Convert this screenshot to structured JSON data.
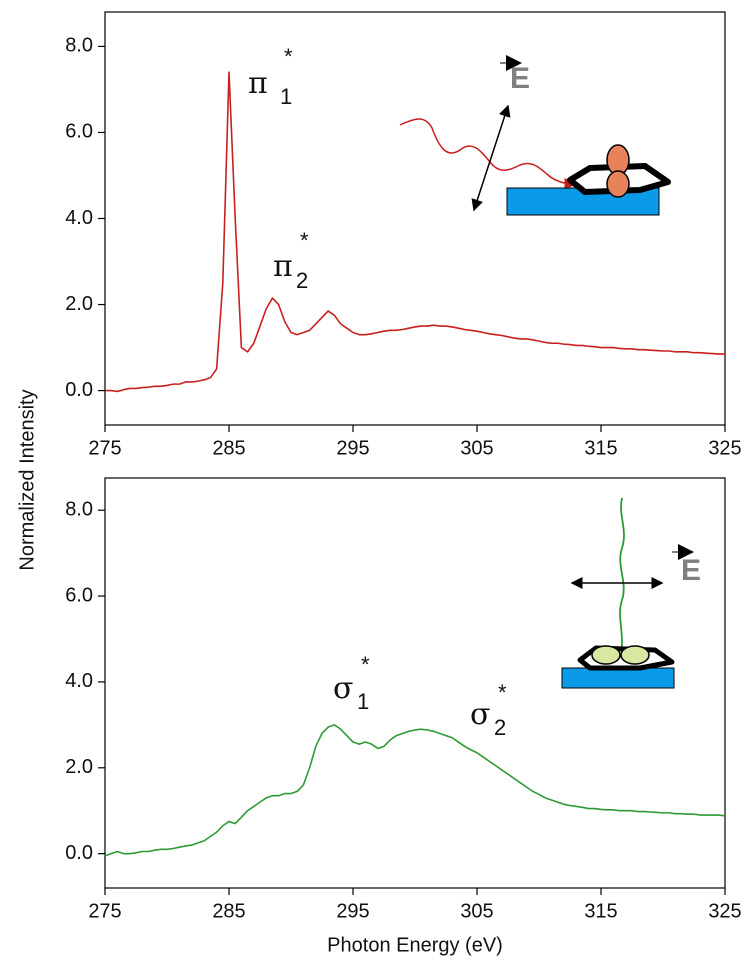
{
  "chart_data": [
    {
      "type": "line",
      "ylabel": "Normalized Intensity",
      "x": [
        275,
        275.5,
        276,
        276.5,
        277,
        277.5,
        278,
        278.5,
        279,
        279.5,
        280,
        280.5,
        281,
        281.5,
        282,
        282.5,
        283,
        283.5,
        284,
        284.5,
        285,
        285.5,
        286,
        286.5,
        287,
        287.5,
        288,
        288.5,
        289,
        289.5,
        290,
        290.5,
        291,
        291.5,
        292,
        292.5,
        293,
        293.5,
        294,
        294.5,
        295,
        295.5,
        296,
        296.5,
        297,
        297.5,
        298,
        298.5,
        299,
        299.5,
        300,
        300.5,
        301,
        301.5,
        302,
        302.5,
        303,
        303.5,
        304,
        304.5,
        305,
        305.5,
        306,
        306.5,
        307,
        307.5,
        308,
        308.5,
        309,
        309.5,
        310,
        310.5,
        311,
        311.5,
        312,
        312.5,
        313,
        313.5,
        314,
        314.5,
        315,
        315.5,
        316,
        316.5,
        317,
        317.5,
        318,
        318.5,
        319,
        319.5,
        320,
        320.5,
        321,
        321.5,
        322,
        322.5,
        323,
        323.5,
        324,
        324.5,
        325
      ],
      "values": [
        0,
        0,
        -0.02,
        0.02,
        0.05,
        0.05,
        0.07,
        0.08,
        0.1,
        0.1,
        0.12,
        0.15,
        0.15,
        0.2,
        0.2,
        0.22,
        0.25,
        0.3,
        0.5,
        2.5,
        7.4,
        4.0,
        1.0,
        0.9,
        1.1,
        1.5,
        1.9,
        2.15,
        2.0,
        1.6,
        1.35,
        1.3,
        1.35,
        1.4,
        1.55,
        1.7,
        1.85,
        1.75,
        1.55,
        1.45,
        1.35,
        1.3,
        1.3,
        1.32,
        1.35,
        1.38,
        1.4,
        1.4,
        1.42,
        1.45,
        1.48,
        1.5,
        1.5,
        1.52,
        1.5,
        1.5,
        1.48,
        1.45,
        1.42,
        1.4,
        1.38,
        1.35,
        1.32,
        1.3,
        1.28,
        1.25,
        1.22,
        1.2,
        1.2,
        1.18,
        1.15,
        1.12,
        1.1,
        1.1,
        1.08,
        1.07,
        1.05,
        1.05,
        1.03,
        1.02,
        1.0,
        1.0,
        1.0,
        0.98,
        0.97,
        0.97,
        0.95,
        0.95,
        0.94,
        0.93,
        0.92,
        0.92,
        0.9,
        0.9,
        0.9,
        0.88,
        0.88,
        0.87,
        0.86,
        0.85,
        0.85
      ],
      "color": "#c8201e",
      "xlim": [
        275,
        325
      ],
      "xticks": [
        275,
        285,
        295,
        305,
        315,
        325
      ],
      "ylim": [
        -0.8,
        8.8
      ],
      "yticks": [
        {
          "value": 0,
          "label": "0.0"
        },
        {
          "value": 2,
          "label": "2.0"
        },
        {
          "value": 4,
          "label": "4.0"
        },
        {
          "value": 6,
          "label": "6.0"
        },
        {
          "value": 8,
          "label": "8.0"
        }
      ],
      "annotations": [
        {
          "text": "π",
          "sub": "1",
          "sup": "*"
        },
        {
          "text": "π",
          "sub": "2",
          "sup": "*"
        },
        {
          "text": "E"
        }
      ]
    },
    {
      "type": "line",
      "xlabel": "Photon Energy (eV)",
      "x": [
        275,
        275.5,
        276,
        276.5,
        277,
        277.5,
        278,
        278.5,
        279,
        279.5,
        280,
        280.5,
        281,
        281.5,
        282,
        282.5,
        283,
        283.5,
        284,
        284.5,
        285,
        285.5,
        286,
        286.5,
        287,
        287.5,
        288,
        288.5,
        289,
        289.5,
        290,
        290.5,
        291,
        291.5,
        292,
        292.5,
        293,
        293.5,
        294,
        294.5,
        295,
        295.5,
        296,
        296.5,
        297,
        297.5,
        298,
        298.5,
        299,
        299.5,
        300,
        300.5,
        301,
        301.5,
        302,
        302.5,
        303,
        303.5,
        304,
        304.5,
        305,
        305.5,
        306,
        306.5,
        307,
        307.5,
        308,
        308.5,
        309,
        309.5,
        310,
        310.5,
        311,
        311.5,
        312,
        312.5,
        313,
        313.5,
        314,
        314.5,
        315,
        315.5,
        316,
        316.5,
        317,
        317.5,
        318,
        318.5,
        319,
        319.5,
        320,
        320.5,
        321,
        321.5,
        322,
        322.5,
        323,
        323.5,
        324,
        324.5,
        325
      ],
      "values": [
        -0.05,
        0,
        0.05,
        0,
        0,
        0.02,
        0.05,
        0.05,
        0.08,
        0.1,
        0.1,
        0.12,
        0.15,
        0.18,
        0.2,
        0.25,
        0.3,
        0.4,
        0.5,
        0.65,
        0.75,
        0.7,
        0.85,
        1.0,
        1.1,
        1.2,
        1.3,
        1.35,
        1.35,
        1.4,
        1.4,
        1.45,
        1.6,
        2.0,
        2.5,
        2.8,
        2.95,
        3.0,
        2.9,
        2.75,
        2.6,
        2.55,
        2.6,
        2.55,
        2.45,
        2.5,
        2.65,
        2.75,
        2.8,
        2.85,
        2.88,
        2.9,
        2.88,
        2.85,
        2.8,
        2.75,
        2.7,
        2.6,
        2.5,
        2.42,
        2.35,
        2.25,
        2.15,
        2.05,
        1.95,
        1.85,
        1.75,
        1.65,
        1.55,
        1.45,
        1.38,
        1.3,
        1.25,
        1.2,
        1.15,
        1.12,
        1.1,
        1.08,
        1.05,
        1.05,
        1.03,
        1.02,
        1.02,
        1.0,
        1.0,
        1.0,
        0.98,
        0.98,
        0.97,
        0.96,
        0.95,
        0.95,
        0.93,
        0.93,
        0.92,
        0.92,
        0.9,
        0.9,
        0.9,
        0.9,
        0.88
      ],
      "color": "#2e9a35",
      "xlim": [
        275,
        325
      ],
      "xticks": [
        275,
        285,
        295,
        305,
        315,
        325
      ],
      "ylim": [
        -0.8,
        8.75
      ],
      "yticks": [
        {
          "value": 0,
          "label": "0.0"
        },
        {
          "value": 2,
          "label": "2.0"
        },
        {
          "value": 4,
          "label": "4.0"
        },
        {
          "value": 6,
          "label": "6.0"
        },
        {
          "value": 8,
          "label": "8.0"
        }
      ],
      "annotations": [
        {
          "text": "σ",
          "sub": "1",
          "sup": "*"
        },
        {
          "text": "σ",
          "sub": "2",
          "sup": "*"
        },
        {
          "text": "E"
        }
      ]
    }
  ]
}
